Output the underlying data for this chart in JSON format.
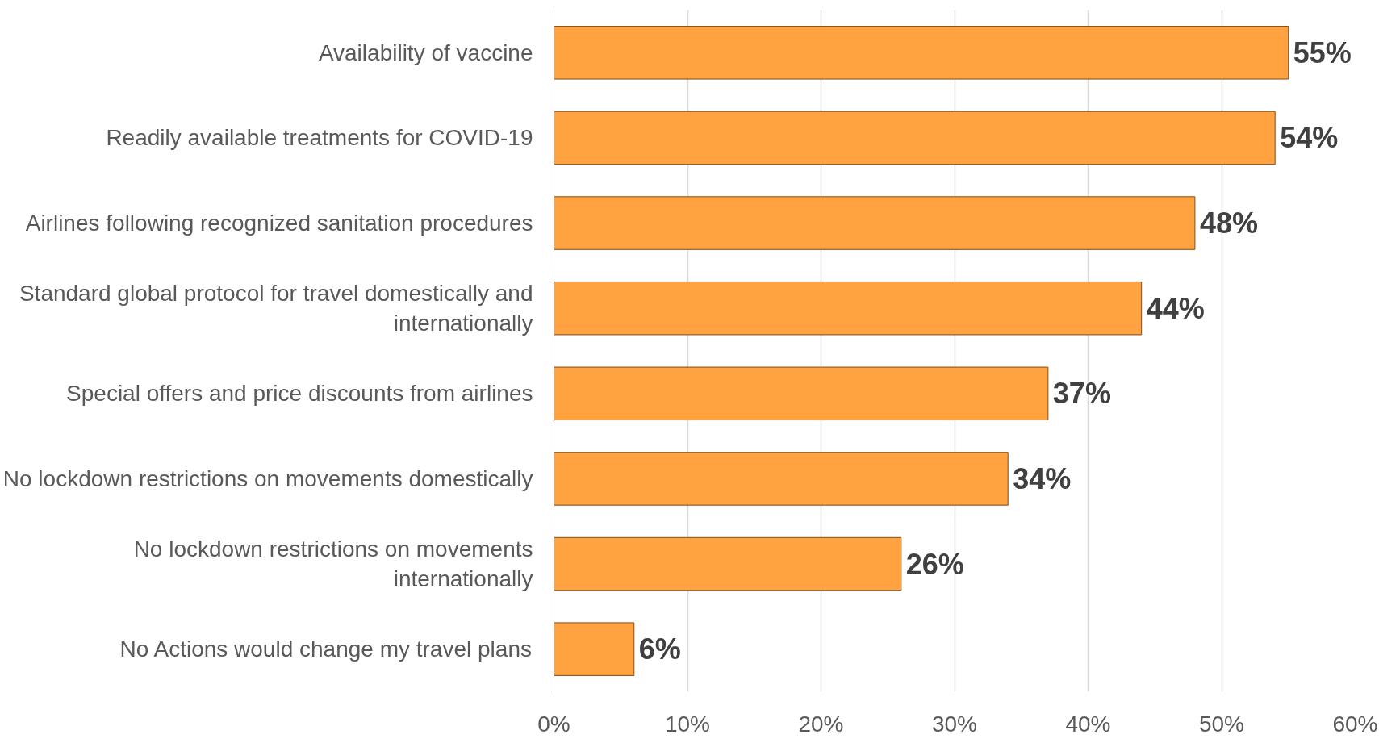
{
  "chart_data": {
    "type": "bar",
    "orientation": "horizontal",
    "categories": [
      "Availability of vaccine",
      "Readily available treatments for COVID-19",
      "Airlines following recognized sanitation procedures",
      "Standard global protocol for travel domestically and internationally",
      "Special offers and price discounts from airlines",
      "No lockdown restrictions on movements domestically",
      "No lockdown restrictions on movements internationally",
      "No Actions would change my travel plans"
    ],
    "values": [
      55,
      54,
      48,
      44,
      37,
      34,
      26,
      6
    ],
    "value_labels": [
      "55%",
      "54%",
      "48%",
      "44%",
      "37%",
      "34%",
      "26%",
      "6%"
    ],
    "color": "#ffa23f",
    "xlim": [
      0,
      60
    ],
    "xticks": [
      {
        "value": 0,
        "label": "0%"
      },
      {
        "value": 10,
        "label": "10%"
      },
      {
        "value": 20,
        "label": "20%"
      },
      {
        "value": 30,
        "label": "30%"
      },
      {
        "value": 40,
        "label": "40%"
      },
      {
        "value": 50,
        "label": "50%"
      },
      {
        "value": 60,
        "label": "60%"
      }
    ],
    "grid": "x"
  }
}
